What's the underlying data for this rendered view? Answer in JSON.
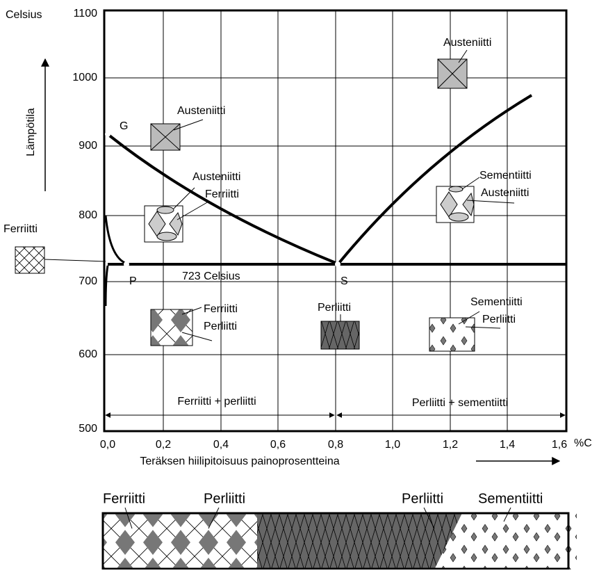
{
  "y_axis": {
    "title": "Celsius",
    "label": "Lämpötila",
    "ticks": [
      "1100",
      "1000",
      "900",
      "800",
      "700",
      "600",
      "500"
    ]
  },
  "x_axis": {
    "ticks": [
      "0,0",
      "0,2",
      "0,4",
      "0,6",
      "0,8",
      "1,0",
      "1,2",
      "1,4",
      "1,6"
    ],
    "unit": "%C",
    "label": "Teräksen hiilipitoisuus painoprosentteina"
  },
  "points": {
    "G": "G",
    "P": "P",
    "S": "S"
  },
  "line_label": "723 Celsius",
  "annotations": [
    "Austeniitti",
    "Austeniitti",
    "Ferriitti",
    "Ferriitti",
    "Ferriitti",
    "Perliitti",
    "Perliitti",
    "Sementiitti",
    "Perliitti",
    "Austeniitti",
    "Sementiitti",
    "Austeniitti"
  ],
  "regions": [
    "Ferriitti + perliitti",
    "Perliitti + sementiitti"
  ],
  "strip_labels": [
    "Ferriitti",
    "Perliitti",
    "Perliitti",
    "Sementiitti"
  ]
}
